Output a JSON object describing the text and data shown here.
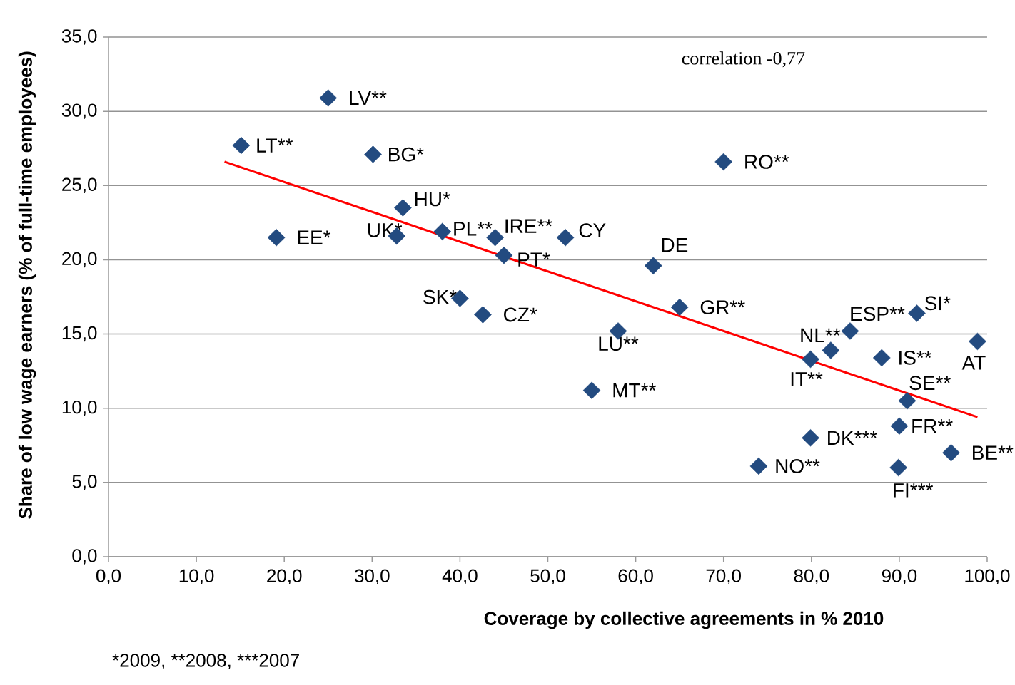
{
  "chart_data": {
    "type": "scatter",
    "xlabel": "Coverage by collective agreements in % 2010",
    "ylabel": "Share of low wage earners (% of full-time employees)",
    "xlim": [
      0,
      100
    ],
    "ylim": [
      0,
      35
    ],
    "xticks": [
      {
        "value": 0,
        "label": "0,0"
      },
      {
        "value": 10,
        "label": "10,0"
      },
      {
        "value": 20,
        "label": "20,0"
      },
      {
        "value": 30,
        "label": "30,0"
      },
      {
        "value": 40,
        "label": "40,0"
      },
      {
        "value": 50,
        "label": "50,0"
      },
      {
        "value": 60,
        "label": "60,0"
      },
      {
        "value": 70,
        "label": "70,0"
      },
      {
        "value": 80,
        "label": "80,0"
      },
      {
        "value": 90,
        "label": "90,0"
      },
      {
        "value": 100,
        "label": "100,0"
      }
    ],
    "yticks": [
      {
        "value": 0,
        "label": "0,0"
      },
      {
        "value": 5,
        "label": "5,0"
      },
      {
        "value": 10,
        "label": "10,0"
      },
      {
        "value": 15,
        "label": "15,0"
      },
      {
        "value": 20,
        "label": "20,0"
      },
      {
        "value": 25,
        "label": "25,0"
      },
      {
        "value": 30,
        "label": "30,0"
      },
      {
        "value": 35,
        "label": "35,0"
      }
    ],
    "grid": "y",
    "marker": "diamond",
    "series": [
      {
        "color": "#234b80",
        "x": [
          25.0,
          15.1,
          30.1,
          70.0,
          33.5,
          19.1,
          32.8,
          38.0,
          44.0,
          52.0,
          45.0,
          62.0,
          40.0,
          42.6,
          65.0,
          58.0,
          84.4,
          92.0,
          98.9,
          82.2,
          79.9,
          88.0,
          55.0,
          90.9,
          90.0,
          79.9,
          95.9,
          74.0,
          89.9
        ],
        "values": [
          30.9,
          27.7,
          27.1,
          26.6,
          23.5,
          21.5,
          21.6,
          21.9,
          21.5,
          21.5,
          20.3,
          19.6,
          17.4,
          16.3,
          16.8,
          15.2,
          15.2,
          16.4,
          14.5,
          13.9,
          13.3,
          13.4,
          11.2,
          10.5,
          8.8,
          8.0,
          7.0,
          6.1,
          6.0
        ]
      },
      {
        "type": "line",
        "color": "#ff0000",
        "marker": "none",
        "x": [
          13.2,
          98.9
        ],
        "values": [
          26.6,
          9.4
        ]
      }
    ],
    "annotations": [
      "correlation -0,77",
      "*2009,",
      "**2008,",
      "***2007",
      {
        "text": "LV**",
        "x": 25.0,
        "y": 30.9
      },
      {
        "text": "LT**",
        "x": 15.1,
        "y": 27.7
      },
      {
        "text": "BG*",
        "x": 30.1,
        "y": 27.1
      },
      {
        "text": "RO**",
        "x": 70.0,
        "y": 26.6
      },
      {
        "text": "HU*",
        "x": 33.5,
        "y": 23.5
      },
      {
        "text": "EE*",
        "x": 19.1,
        "y": 21.5
      },
      {
        "text": "UK*",
        "x": 32.8,
        "y": 21.6
      },
      {
        "text": "PL**",
        "x": 38.0,
        "y": 21.9
      },
      {
        "text": "IRE**",
        "x": 44.0,
        "y": 21.5
      },
      {
        "text": "CY",
        "x": 52.0,
        "y": 21.5
      },
      {
        "text": "PT*",
        "x": 45.0,
        "y": 20.3
      },
      {
        "text": "DE",
        "x": 62.0,
        "y": 19.6
      },
      {
        "text": "SK*",
        "x": 40.0,
        "y": 17.4
      },
      {
        "text": "CZ*",
        "x": 42.6,
        "y": 16.3
      },
      {
        "text": "GR**",
        "x": 65.0,
        "y": 16.8
      },
      {
        "text": "LU**",
        "x": 58.0,
        "y": 15.2
      },
      {
        "text": "ESP**",
        "x": 84.4,
        "y": 15.2
      },
      {
        "text": "SI*",
        "x": 92.0,
        "y": 16.4
      },
      {
        "text": "AT",
        "x": 98.9,
        "y": 14.5
      },
      {
        "text": "NL**",
        "x": 82.2,
        "y": 13.9
      },
      {
        "text": "IT**",
        "x": 79.9,
        "y": 13.3
      },
      {
        "text": "IS**",
        "x": 88.0,
        "y": 13.4
      },
      {
        "text": "MT**",
        "x": 55.0,
        "y": 11.2
      },
      {
        "text": "SE**",
        "x": 90.9,
        "y": 10.5
      },
      {
        "text": "FR**",
        "x": 90.0,
        "y": 8.8
      },
      {
        "text": "DK***",
        "x": 79.9,
        "y": 8.0
      },
      {
        "text": "BE**",
        "x": 95.9,
        "y": 7.0
      },
      {
        "text": "NO**",
        "x": 74.0,
        "y": 6.1
      },
      {
        "text": "FI***",
        "x": 89.9,
        "y": 6.0
      }
    ]
  }
}
